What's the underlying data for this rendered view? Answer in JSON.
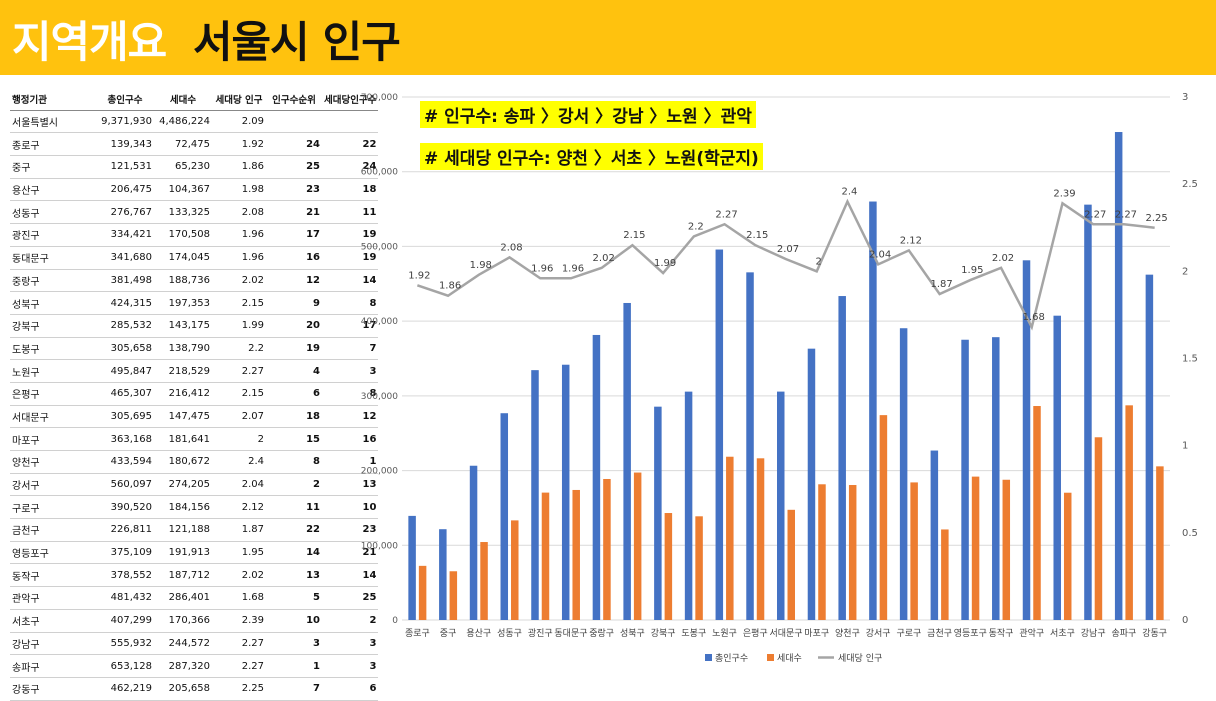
{
  "header": {
    "title_prefix": "지역개요",
    "title_main": "서울시 인구"
  },
  "table": {
    "headers": [
      "행정기관",
      "총인구수",
      "세대수",
      "세대당 인구",
      "인구수순위",
      "세대당인구수"
    ],
    "rows": [
      [
        "서울특별시",
        "9,371,930",
        "4,486,224",
        "2.09",
        "",
        ""
      ],
      [
        "종로구",
        "139,343",
        "72,475",
        "1.92",
        "24",
        "22"
      ],
      [
        "중구",
        "121,531",
        "65,230",
        "1.86",
        "25",
        "24"
      ],
      [
        "용산구",
        "206,475",
        "104,367",
        "1.98",
        "23",
        "18"
      ],
      [
        "성동구",
        "276,767",
        "133,325",
        "2.08",
        "21",
        "11"
      ],
      [
        "광진구",
        "334,421",
        "170,508",
        "1.96",
        "17",
        "19"
      ],
      [
        "동대문구",
        "341,680",
        "174,045",
        "1.96",
        "16",
        "19"
      ],
      [
        "중랑구",
        "381,498",
        "188,736",
        "2.02",
        "12",
        "14"
      ],
      [
        "성북구",
        "424,315",
        "197,353",
        "2.15",
        "9",
        "8"
      ],
      [
        "강북구",
        "285,532",
        "143,175",
        "1.99",
        "20",
        "17"
      ],
      [
        "도봉구",
        "305,658",
        "138,790",
        "2.2",
        "19",
        "7"
      ],
      [
        "노원구",
        "495,847",
        "218,529",
        "2.27",
        "4",
        "3"
      ],
      [
        "은평구",
        "465,307",
        "216,412",
        "2.15",
        "6",
        "8"
      ],
      [
        "서대문구",
        "305,695",
        "147,475",
        "2.07",
        "18",
        "12"
      ],
      [
        "마포구",
        "363,168",
        "181,641",
        "2",
        "15",
        "16"
      ],
      [
        "양천구",
        "433,594",
        "180,672",
        "2.4",
        "8",
        "1"
      ],
      [
        "강서구",
        "560,097",
        "274,205",
        "2.04",
        "2",
        "13"
      ],
      [
        "구로구",
        "390,520",
        "184,156",
        "2.12",
        "11",
        "10"
      ],
      [
        "금천구",
        "226,811",
        "121,188",
        "1.87",
        "22",
        "23"
      ],
      [
        "영등포구",
        "375,109",
        "191,913",
        "1.95",
        "14",
        "21"
      ],
      [
        "동작구",
        "378,552",
        "187,712",
        "2.02",
        "13",
        "14"
      ],
      [
        "관악구",
        "481,432",
        "286,401",
        "1.68",
        "5",
        "25"
      ],
      [
        "서초구",
        "407,299",
        "170,366",
        "2.39",
        "10",
        "2"
      ],
      [
        "강남구",
        "555,932",
        "244,572",
        "2.27",
        "3",
        "3"
      ],
      [
        "송파구",
        "653,128",
        "287,320",
        "2.27",
        "1",
        "3"
      ],
      [
        "강동구",
        "462,219",
        "205,658",
        "2.25",
        "7",
        "6"
      ]
    ]
  },
  "notes": {
    "line1": "# 인구수: 송파 〉강서 〉강남 〉노원 〉관악",
    "line2": "# 세대당 인구수: 양천 〉서초 〉노원(학군지)"
  },
  "chart_data": {
    "type": "bar",
    "categories": [
      "종로구",
      "중구",
      "용산구",
      "성동구",
      "광진구",
      "동대문구",
      "중랑구",
      "성북구",
      "강북구",
      "도봉구",
      "노원구",
      "은평구",
      "서대문구",
      "마포구",
      "양천구",
      "강서구",
      "구로구",
      "금천구",
      "영등포구",
      "동작구",
      "관악구",
      "서초구",
      "강남구",
      "송파구",
      "강동구"
    ],
    "series": [
      {
        "name": "총인구수",
        "type": "bar",
        "axis": "left",
        "color": "#4472C4",
        "values": [
          139343,
          121531,
          206475,
          276767,
          334421,
          341680,
          381498,
          424315,
          285532,
          305658,
          495847,
          465307,
          305695,
          363168,
          433594,
          560097,
          390520,
          226811,
          375109,
          378552,
          481432,
          407299,
          555932,
          653128,
          462219
        ]
      },
      {
        "name": "세대수",
        "type": "bar",
        "axis": "left",
        "color": "#ED7D31",
        "values": [
          72475,
          65230,
          104367,
          133325,
          170508,
          174045,
          188736,
          197353,
          143175,
          138790,
          218529,
          216412,
          147475,
          181641,
          180672,
          274205,
          184156,
          121188,
          191913,
          187712,
          286401,
          170366,
          244572,
          287320,
          205658
        ]
      },
      {
        "name": "세대당 인구",
        "type": "line",
        "axis": "right",
        "color": "#A5A5A5",
        "values": [
          1.92,
          1.86,
          1.98,
          2.08,
          1.96,
          1.96,
          2.02,
          2.15,
          1.99,
          2.2,
          2.27,
          2.15,
          2.07,
          2,
          2.4,
          2.04,
          2.12,
          1.87,
          1.95,
          2.02,
          1.68,
          2.39,
          2.27,
          2.27,
          2.25
        ]
      }
    ],
    "y_left": {
      "min": 0,
      "max": 700000,
      "ticks": [
        "0",
        "100,000",
        "200,000",
        "300,000",
        "400,000",
        "500,000",
        "600,000",
        "700,000"
      ]
    },
    "y_right": {
      "min": 0,
      "max": 3,
      "ticks": [
        "0",
        "0.5",
        "1",
        "1.5",
        "2",
        "2.5",
        "3"
      ]
    },
    "legend_position": "bottom",
    "grid": true
  }
}
